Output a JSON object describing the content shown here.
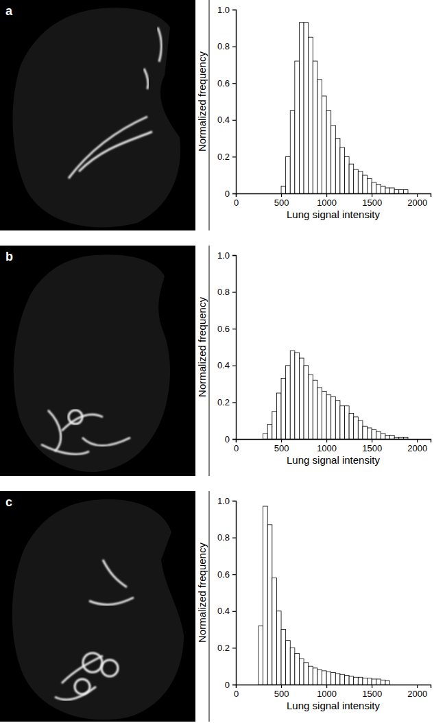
{
  "chart_data": [
    {
      "type": "histogram",
      "title": "a",
      "xlabel": "Lung signal intensity",
      "ylabel": "Normalized frequency",
      "color": "#ffffff",
      "bins": [
        500,
        550,
        600,
        650,
        700,
        750,
        800,
        850,
        900,
        950,
        1000,
        1050,
        1100,
        1150,
        1200,
        1250,
        1300,
        1350,
        1400,
        1450,
        1500,
        1550,
        1600,
        1650,
        1700,
        1750,
        1800,
        1850,
        1900
      ],
      "values": [
        0.04,
        0.2,
        0.45,
        0.72,
        0.93,
        0.93,
        0.85,
        0.72,
        0.62,
        0.53,
        0.45,
        0.37,
        0.3,
        0.25,
        0.2,
        0.16,
        0.13,
        0.12,
        0.1,
        0.08,
        0.06,
        0.05,
        0.04,
        0.03,
        0.03,
        0.02,
        0.02,
        0.02
      ],
      "xlim": [
        0,
        2150
      ],
      "xticks": [
        0,
        500,
        1000,
        1500,
        2000
      ],
      "ylim": [
        0,
        1
      ],
      "yticks": [
        0,
        0.2,
        0.4,
        0.6,
        0.8,
        {
          "value": 1,
          "label": "1.0"
        }
      ]
    },
    {
      "type": "histogram",
      "title": "b",
      "xlabel": "Lung signal intensity",
      "ylabel": "Normalized frequency",
      "color": "#ffffff",
      "bins": [
        300,
        350,
        400,
        450,
        500,
        550,
        600,
        650,
        700,
        750,
        800,
        850,
        900,
        950,
        1000,
        1050,
        1100,
        1150,
        1200,
        1250,
        1300,
        1350,
        1400,
        1450,
        1500,
        1550,
        1600,
        1650,
        1700,
        1750,
        1800,
        1850,
        1900
      ],
      "values": [
        0.03,
        0.08,
        0.15,
        0.25,
        0.33,
        0.4,
        0.48,
        0.47,
        0.44,
        0.4,
        0.35,
        0.32,
        0.28,
        0.26,
        0.24,
        0.23,
        0.21,
        0.18,
        0.18,
        0.14,
        0.12,
        0.1,
        0.07,
        0.06,
        0.05,
        0.04,
        0.03,
        0.02,
        0.02,
        0.01,
        0.01,
        0.01
      ],
      "xlim": [
        0,
        2150
      ],
      "xticks": [
        0,
        500,
        1000,
        1500,
        2000
      ],
      "ylim": [
        0,
        1
      ],
      "yticks": [
        0,
        0.2,
        0.4,
        0.6,
        0.8,
        {
          "value": 1,
          "label": "1.0"
        }
      ]
    },
    {
      "type": "histogram",
      "title": "c",
      "xlabel": "Lung signal intensity",
      "ylabel": "Normalized frequency",
      "color": "#ffffff",
      "bins": [
        250,
        300,
        350,
        400,
        450,
        500,
        550,
        600,
        650,
        700,
        750,
        800,
        850,
        900,
        950,
        1000,
        1050,
        1100,
        1150,
        1200,
        1250,
        1300,
        1350,
        1400,
        1450,
        1500,
        1550,
        1600,
        1650,
        1700
      ],
      "values": [
        0.32,
        0.97,
        0.87,
        0.58,
        0.4,
        0.3,
        0.24,
        0.2,
        0.17,
        0.14,
        0.12,
        0.1,
        0.09,
        0.08,
        0.075,
        0.07,
        0.065,
        0.06,
        0.055,
        0.05,
        0.045,
        0.04,
        0.04,
        0.035,
        0.035,
        0.03,
        0.03,
        0.025,
        0.02
      ],
      "xlim": [
        0,
        2150
      ],
      "xticks": [
        0,
        500,
        1000,
        1500,
        2000
      ],
      "ylim": [
        0,
        1
      ],
      "yticks": [
        0,
        0.2,
        0.4,
        0.6,
        0.8,
        {
          "value": 1,
          "label": "1.0"
        }
      ]
    }
  ]
}
